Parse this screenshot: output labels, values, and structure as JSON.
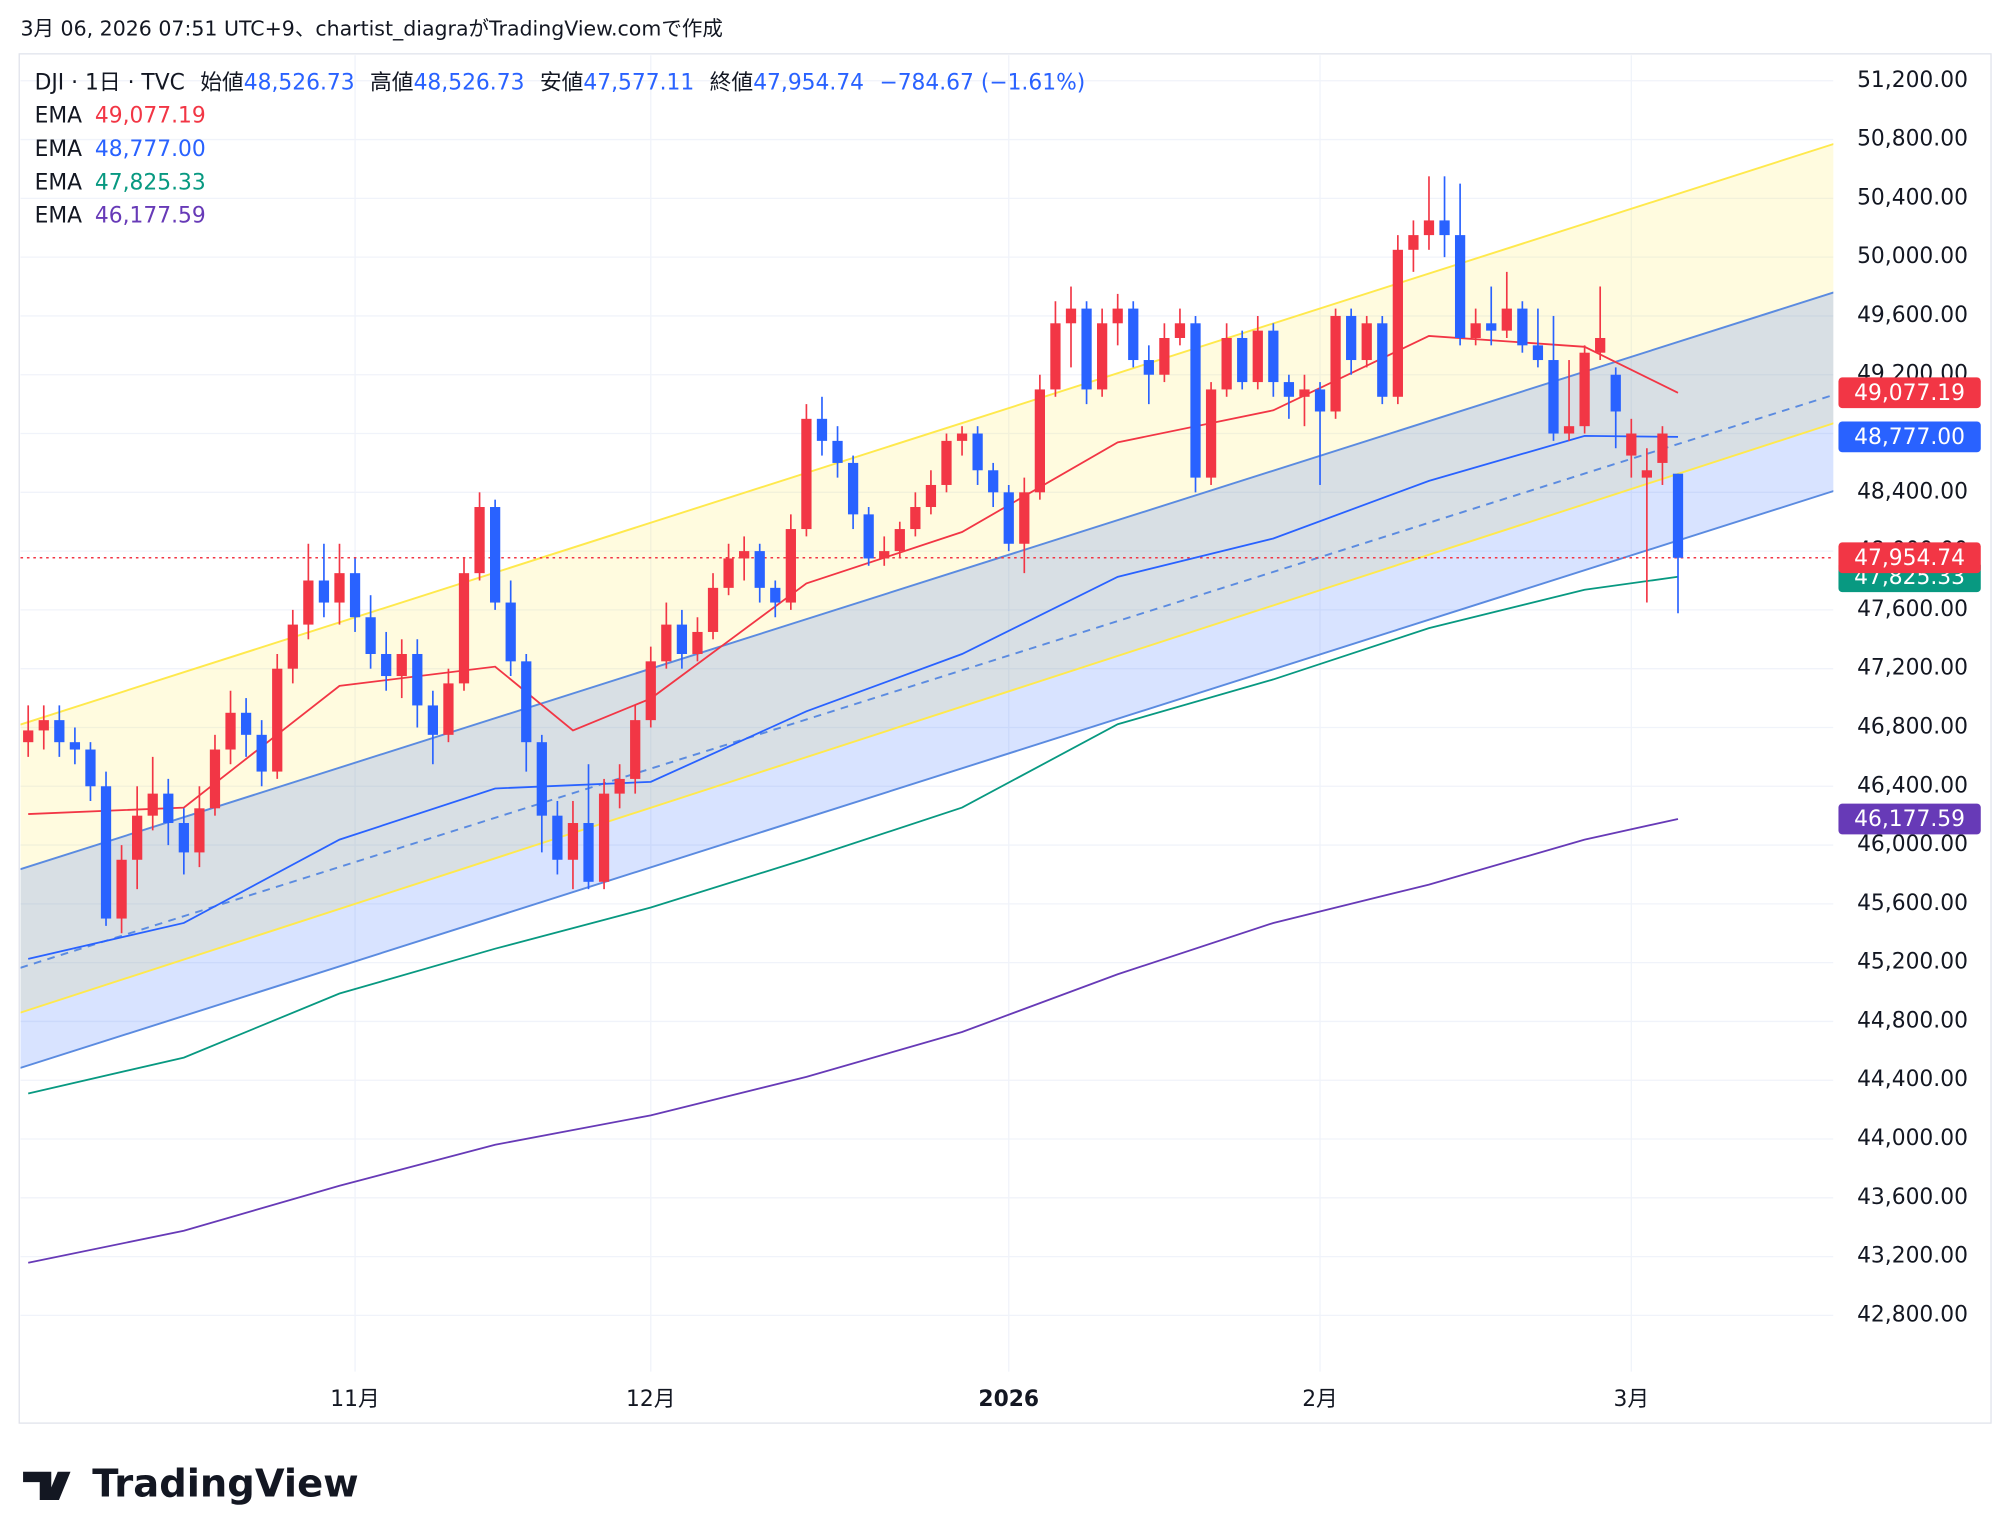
{
  "chart_data": {
    "type": "candlestick",
    "caption": "3月 06, 2026 07:51 UTC+9、chartist_diagraがTradingView.comで作成",
    "brand": "TradingView",
    "legend_header": {
      "symbol": "DJI · 1日 · TVC",
      "items": [
        {
          "label": "始値",
          "value": "48,526.73"
        },
        {
          "label": "高値",
          "value": "48,526.73"
        },
        {
          "label": "安値",
          "value": "47,577.11"
        },
        {
          "label": "終値",
          "value": "47,954.74"
        }
      ],
      "change": "−784.67 (−1.61%)"
    },
    "up_color": "#f23645",
    "down_color": "#2962ff",
    "candles": [
      [
        46700,
        46950,
        46600,
        46780
      ],
      [
        46780,
        46950,
        46650,
        46850
      ],
      [
        46850,
        46950,
        46600,
        46700
      ],
      [
        46700,
        46800,
        46550,
        46650
      ],
      [
        46650,
        46700,
        46300,
        46400
      ],
      [
        46400,
        46500,
        45450,
        45500
      ],
      [
        45500,
        46000,
        45400,
        45900
      ],
      [
        45900,
        46400,
        45700,
        46200
      ],
      [
        46200,
        46600,
        46100,
        46350
      ],
      [
        46350,
        46450,
        46000,
        46150
      ],
      [
        46150,
        46250,
        45800,
        45950
      ],
      [
        45950,
        46400,
        45850,
        46250
      ],
      [
        46250,
        46750,
        46200,
        46650
      ],
      [
        46650,
        47050,
        46550,
        46900
      ],
      [
        46900,
        47000,
        46600,
        46750
      ],
      [
        46750,
        46850,
        46400,
        46500
      ],
      [
        46500,
        47300,
        46450,
        47200
      ],
      [
        47200,
        47600,
        47100,
        47500
      ],
      [
        47500,
        48050,
        47400,
        47800
      ],
      [
        47800,
        48050,
        47550,
        47650
      ],
      [
        47650,
        48050,
        47500,
        47850
      ],
      [
        47850,
        47950,
        47450,
        47550
      ],
      [
        47550,
        47700,
        47200,
        47300
      ],
      [
        47300,
        47450,
        47050,
        47150
      ],
      [
        47150,
        47400,
        47000,
        47300
      ],
      [
        47300,
        47400,
        46800,
        46950
      ],
      [
        46950,
        47050,
        46550,
        46750
      ],
      [
        46750,
        47200,
        46700,
        47100
      ],
      [
        47100,
        47950,
        47050,
        47850
      ],
      [
        47850,
        48400,
        47800,
        48300
      ],
      [
        48300,
        48350,
        47600,
        47650
      ],
      [
        47650,
        47800,
        47150,
        47250
      ],
      [
        47250,
        47300,
        46500,
        46700
      ],
      [
        46700,
        46750,
        45950,
        46200
      ],
      [
        46200,
        46300,
        45800,
        45900
      ],
      [
        45900,
        46300,
        45700,
        46150
      ],
      [
        46150,
        46550,
        45700,
        45750
      ],
      [
        45750,
        46450,
        45700,
        46350
      ],
      [
        46350,
        46550,
        46250,
        46450
      ],
      [
        46450,
        46950,
        46350,
        46850
      ],
      [
        46850,
        47350,
        46800,
        47250
      ],
      [
        47250,
        47650,
        47200,
        47500
      ],
      [
        47500,
        47600,
        47200,
        47300
      ],
      [
        47300,
        47550,
        47250,
        47450
      ],
      [
        47450,
        47850,
        47400,
        47750
      ],
      [
        47750,
        48050,
        47700,
        47950
      ],
      [
        47950,
        48100,
        47800,
        48000
      ],
      [
        48000,
        48050,
        47650,
        47750
      ],
      [
        47750,
        47800,
        47550,
        47650
      ],
      [
        47650,
        48250,
        47600,
        48150
      ],
      [
        48150,
        49000,
        48100,
        48900
      ],
      [
        48900,
        49050,
        48650,
        48750
      ],
      [
        48750,
        48850,
        48500,
        48600
      ],
      [
        48600,
        48650,
        48150,
        48250
      ],
      [
        48250,
        48300,
        47900,
        47950
      ],
      [
        47950,
        48100,
        47900,
        48000
      ],
      [
        48000,
        48200,
        47950,
        48150
      ],
      [
        48150,
        48400,
        48100,
        48300
      ],
      [
        48300,
        48550,
        48250,
        48450
      ],
      [
        48450,
        48800,
        48400,
        48750
      ],
      [
        48750,
        48850,
        48650,
        48800
      ],
      [
        48800,
        48850,
        48450,
        48550
      ],
      [
        48550,
        48600,
        48300,
        48400
      ],
      [
        48400,
        48450,
        48000,
        48050
      ],
      [
        48050,
        48500,
        47850,
        48400
      ],
      [
        48400,
        49200,
        48350,
        49100
      ],
      [
        49100,
        49700,
        49050,
        49550
      ],
      [
        49550,
        49800,
        49250,
        49650
      ],
      [
        49650,
        49700,
        49000,
        49100
      ],
      [
        49100,
        49650,
        49050,
        49550
      ],
      [
        49550,
        49750,
        49400,
        49650
      ],
      [
        49650,
        49700,
        49250,
        49300
      ],
      [
        49300,
        49400,
        49000,
        49200
      ],
      [
        49200,
        49550,
        49150,
        49450
      ],
      [
        49450,
        49650,
        49400,
        49550
      ],
      [
        49550,
        49600,
        48400,
        48500
      ],
      [
        48500,
        49150,
        48450,
        49100
      ],
      [
        49100,
        49550,
        49050,
        49450
      ],
      [
        49450,
        49500,
        49100,
        49150
      ],
      [
        49150,
        49600,
        49100,
        49500
      ],
      [
        49500,
        49550,
        49050,
        49150
      ],
      [
        49150,
        49200,
        48900,
        49050
      ],
      [
        49050,
        49200,
        48850,
        49100
      ],
      [
        49100,
        49150,
        48450,
        48950
      ],
      [
        48950,
        49650,
        48900,
        49600
      ],
      [
        49600,
        49650,
        49200,
        49300
      ],
      [
        49300,
        49600,
        49250,
        49550
      ],
      [
        49550,
        49600,
        49000,
        49050
      ],
      [
        49050,
        50150,
        49000,
        50050
      ],
      [
        50050,
        50250,
        49900,
        50150
      ],
      [
        50150,
        50550,
        50050,
        50250
      ],
      [
        50250,
        50550,
        50000,
        50150
      ],
      [
        50150,
        50500,
        49400,
        49450
      ],
      [
        49450,
        49650,
        49400,
        49550
      ],
      [
        49550,
        49800,
        49400,
        49500
      ],
      [
        49500,
        49900,
        49450,
        49650
      ],
      [
        49650,
        49700,
        49350,
        49400
      ],
      [
        49400,
        49650,
        49250,
        49300
      ],
      [
        49300,
        49600,
        48750,
        48800
      ],
      [
        48800,
        49300,
        48750,
        48850
      ],
      [
        48850,
        49400,
        48800,
        49350
      ],
      [
        49350,
        49800,
        49300,
        49450
      ],
      [
        49200,
        49250,
        48700,
        48950
      ],
      [
        48650,
        48900,
        48500,
        48800
      ],
      [
        48500,
        48700,
        47650,
        48550
      ],
      [
        48600,
        48850,
        48450,
        48800
      ],
      [
        48526.73,
        48526.73,
        47577.11,
        47954.74
      ]
    ],
    "series": [
      {
        "name": "EMA",
        "color": "#f23645",
        "x": [
          0,
          10,
          20,
          30,
          35,
          40,
          50,
          60,
          70,
          80,
          90,
          100,
          106
        ],
        "values": [
          46211,
          46255,
          47083,
          47214,
          46780,
          46997,
          47780,
          48130,
          48740,
          48958,
          49464,
          49390,
          49077.19
        ],
        "last_label": "49,077.19"
      },
      {
        "name": "EMA",
        "color": "#2962ff",
        "x": [
          0,
          10,
          20,
          30,
          40,
          50,
          60,
          70,
          80,
          90,
          100,
          106
        ],
        "values": [
          45226,
          45470,
          46037,
          46385,
          46430,
          46910,
          47300,
          47825,
          48086,
          48478,
          48784,
          48777.0
        ],
        "last_label": "48,777.00"
      },
      {
        "name": "EMA",
        "color": "#089981",
        "x": [
          0,
          10,
          20,
          30,
          40,
          50,
          60,
          70,
          80,
          90,
          100,
          106
        ],
        "values": [
          44310,
          44554,
          44990,
          45295,
          45575,
          45906,
          46255,
          46822,
          47127,
          47476,
          47737,
          47825.33
        ],
        "last_label": "47,825.33"
      },
      {
        "name": "EMA",
        "color": "#673ab7",
        "x": [
          0,
          10,
          20,
          30,
          40,
          50,
          60,
          70,
          80,
          90,
          100,
          106
        ],
        "values": [
          43158,
          43376,
          43682,
          43961,
          44161,
          44423,
          44728,
          45121,
          45470,
          45731,
          46037,
          46177.59
        ],
        "last_label": "46,177.59"
      }
    ],
    "channel": {
      "x": [
        -0.5,
        116
      ],
      "lines": [
        {
          "color": "#ffe94d",
          "values": [
            46820,
            50770
          ]
        },
        {
          "color": "#5b8be0",
          "values": [
            45836,
            49760
          ]
        },
        {
          "color": "#5b8be0",
          "values": [
            45165,
            49063
          ],
          "dashed": true
        },
        {
          "color": "#ffe94d",
          "values": [
            44860,
            48870
          ]
        },
        {
          "color": "#5b8be0",
          "values": [
            44484,
            48409
          ]
        }
      ],
      "fills": [
        {
          "between": [
            0,
            3
          ],
          "color": "rgba(255,235,80,0.18)"
        },
        {
          "between": [
            1,
            4
          ],
          "color": "rgba(41,98,255,0.18)"
        }
      ]
    },
    "last_close": {
      "value": 47954.74,
      "label": "47,954.74",
      "color": "#f23645"
    },
    "ylim": [
      42600,
      51400
    ],
    "yticks": [
      {
        "value": 42800,
        "label": "42,800.00"
      },
      {
        "value": 43200,
        "label": "43,200.00"
      },
      {
        "value": 43600,
        "label": "43,600.00"
      },
      {
        "value": 44000,
        "label": "44,000.00"
      },
      {
        "value": 44400,
        "label": "44,400.00"
      },
      {
        "value": 44800,
        "label": "44,800.00"
      },
      {
        "value": 45200,
        "label": "45,200.00"
      },
      {
        "value": 45600,
        "label": "45,600.00"
      },
      {
        "value": 46000,
        "label": "46,000.00"
      },
      {
        "value": 46400,
        "label": "46,400.00"
      },
      {
        "value": 46800,
        "label": "46,800.00"
      },
      {
        "value": 47200,
        "label": "47,200.00"
      },
      {
        "value": 47600,
        "label": "47,600.00"
      },
      {
        "value": 48000,
        "label": "48,000.00"
      },
      {
        "value": 48400,
        "label": "48,400.00"
      },
      {
        "value": 48800,
        "label": "48,800.00"
      },
      {
        "value": 49200,
        "label": "49,200.00"
      },
      {
        "value": 49600,
        "label": "49,600.00"
      },
      {
        "value": 50000,
        "label": "50,000.00"
      },
      {
        "value": 50400,
        "label": "50,400.00"
      },
      {
        "value": 50800,
        "label": "50,800.00"
      },
      {
        "value": 51200,
        "label": "51,200.00"
      }
    ],
    "xticks": [
      {
        "value": 21,
        "label": "11月"
      },
      {
        "value": 40,
        "label": "12月"
      },
      {
        "value": 63,
        "label": "2026",
        "bold": true
      },
      {
        "value": 83,
        "label": "2月"
      },
      {
        "value": 103,
        "label": "3月"
      }
    ],
    "grid": true
  }
}
